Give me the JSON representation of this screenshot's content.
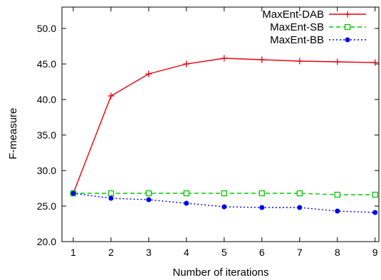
{
  "chart_data": {
    "type": "line",
    "title": "",
    "xlabel": "Number of iterations",
    "ylabel": "F-measure",
    "x": [
      1,
      2,
      3,
      4,
      5,
      6,
      7,
      8,
      9
    ],
    "xlim": [
      0.7,
      9.1
    ],
    "ylim": [
      20.0,
      53.0
    ],
    "xticks": [
      "1",
      "2",
      "3",
      "4",
      "5",
      "6",
      "7",
      "8",
      "9"
    ],
    "yticks": [
      "20.0",
      "25.0",
      "30.0",
      "35.0",
      "40.0",
      "45.0",
      "50.0"
    ],
    "grid": false,
    "legend_position": "top-right",
    "series": [
      {
        "name": "MaxEnt-DAB",
        "color": "#e8000b",
        "line": "solid",
        "marker": "plus",
        "values": [
          26.8,
          40.5,
          43.6,
          45.0,
          45.8,
          45.6,
          45.4,
          45.3,
          45.2
        ]
      },
      {
        "name": "MaxEnt-SB",
        "color": "#00c800",
        "line": "dashed",
        "marker": "open-square",
        "values": [
          26.8,
          26.8,
          26.8,
          26.8,
          26.8,
          26.8,
          26.8,
          26.6,
          26.6
        ]
      },
      {
        "name": "MaxEnt-BB",
        "color": "#0000ee",
        "line": "dotted",
        "marker": "filled-circle",
        "values": [
          26.8,
          26.1,
          25.9,
          25.4,
          24.9,
          24.8,
          24.8,
          24.3,
          24.1
        ]
      }
    ]
  }
}
